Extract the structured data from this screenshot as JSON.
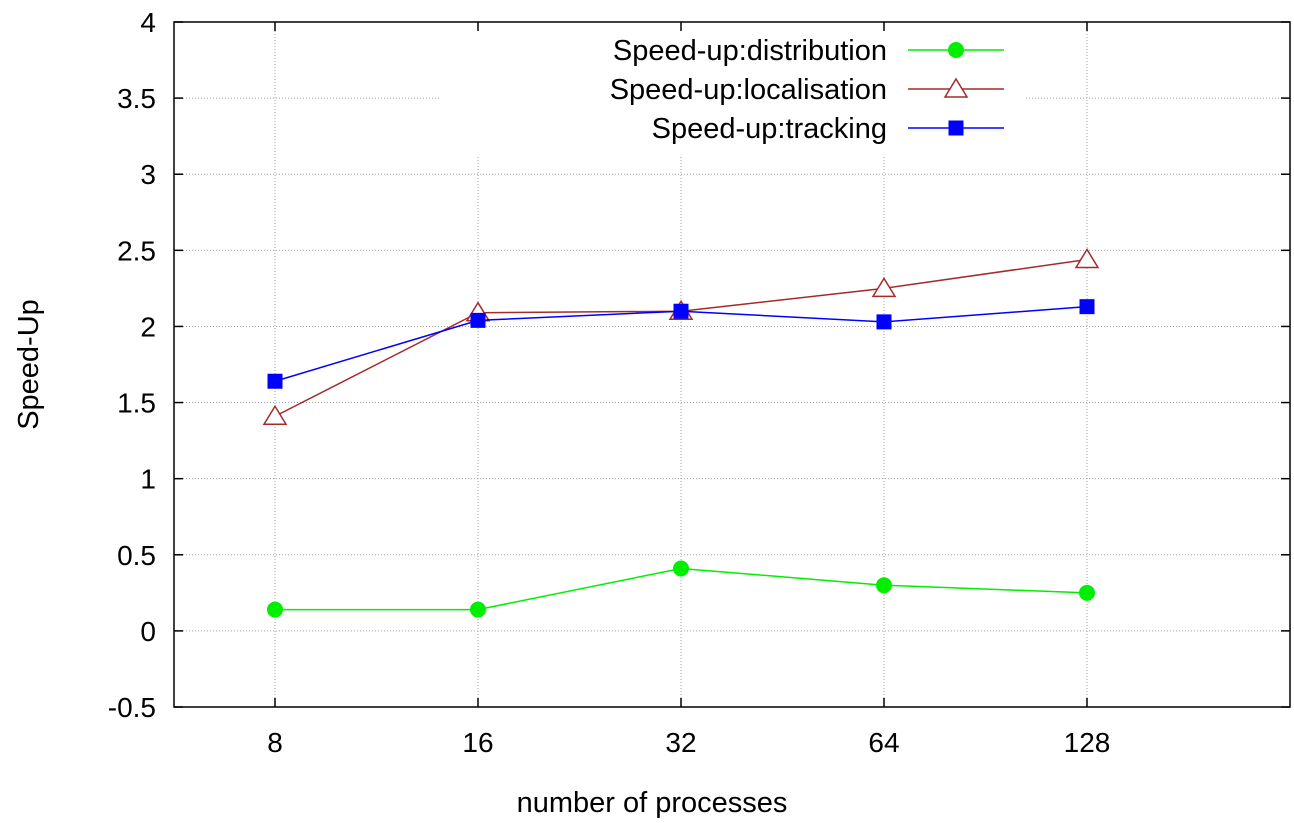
{
  "chart_data": {
    "type": "line",
    "title": "",
    "xlabel": "number of processes",
    "ylabel": "Speed-Up",
    "categories": [
      "8",
      "16",
      "32",
      "64",
      "128"
    ],
    "ylim": [
      -0.5,
      4
    ],
    "yticks": [
      -0.5,
      0,
      0.5,
      1,
      1.5,
      2,
      2.5,
      3,
      3.5,
      4
    ],
    "ytick_labels": [
      "-0.5",
      "0",
      "0.5",
      "1",
      "1.5",
      "2",
      "2.5",
      "3",
      "3.5",
      "4"
    ],
    "grid": true,
    "legend_position": "top-right",
    "series": [
      {
        "name": "Speed-up:distribution",
        "color": "#00ee00",
        "marker": "filled-circle",
        "values": [
          0.14,
          0.14,
          0.41,
          0.3,
          0.25
        ]
      },
      {
        "name": "Speed-up:localisation",
        "color": "#a52a2a",
        "marker": "open-triangle",
        "values": [
          1.41,
          2.09,
          2.1,
          2.25,
          2.44
        ]
      },
      {
        "name": "Speed-up:tracking",
        "color": "#0000ff",
        "marker": "filled-square",
        "values": [
          1.64,
          2.04,
          2.1,
          2.03,
          2.13
        ]
      }
    ]
  }
}
